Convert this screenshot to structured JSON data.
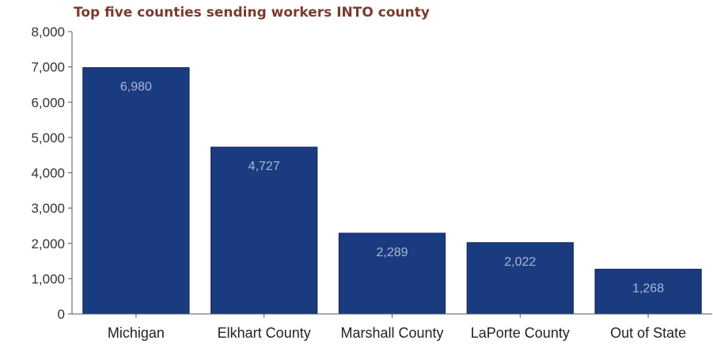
{
  "chart_data": {
    "type": "bar",
    "title": "Top five counties sending workers INTO county",
    "xlabel": "",
    "ylabel": "",
    "categories": [
      "Michigan",
      "Elkhart County",
      "Marshall County",
      "LaPorte County",
      "Out of State"
    ],
    "values": [
      6980,
      4727,
      2289,
      2022,
      1268
    ],
    "value_labels": [
      "6,980",
      "4,727",
      "2,289",
      "2,022",
      "1,268"
    ],
    "ylim": [
      0,
      8000
    ],
    "yticks": [
      0,
      1000,
      2000,
      3000,
      4000,
      5000,
      6000,
      7000,
      8000
    ],
    "ytick_labels": [
      "0",
      "1,000",
      "2,000",
      "3,000",
      "4,000",
      "5,000",
      "6,000",
      "7,000",
      "8,000"
    ],
    "grid": false,
    "legend": "none",
    "colors": {
      "bar": "#1a3b7f",
      "bar_edge": "#0f2a63",
      "data_label": "#aab6d6",
      "title": "#7a3b2e",
      "axis": "#555555"
    }
  }
}
